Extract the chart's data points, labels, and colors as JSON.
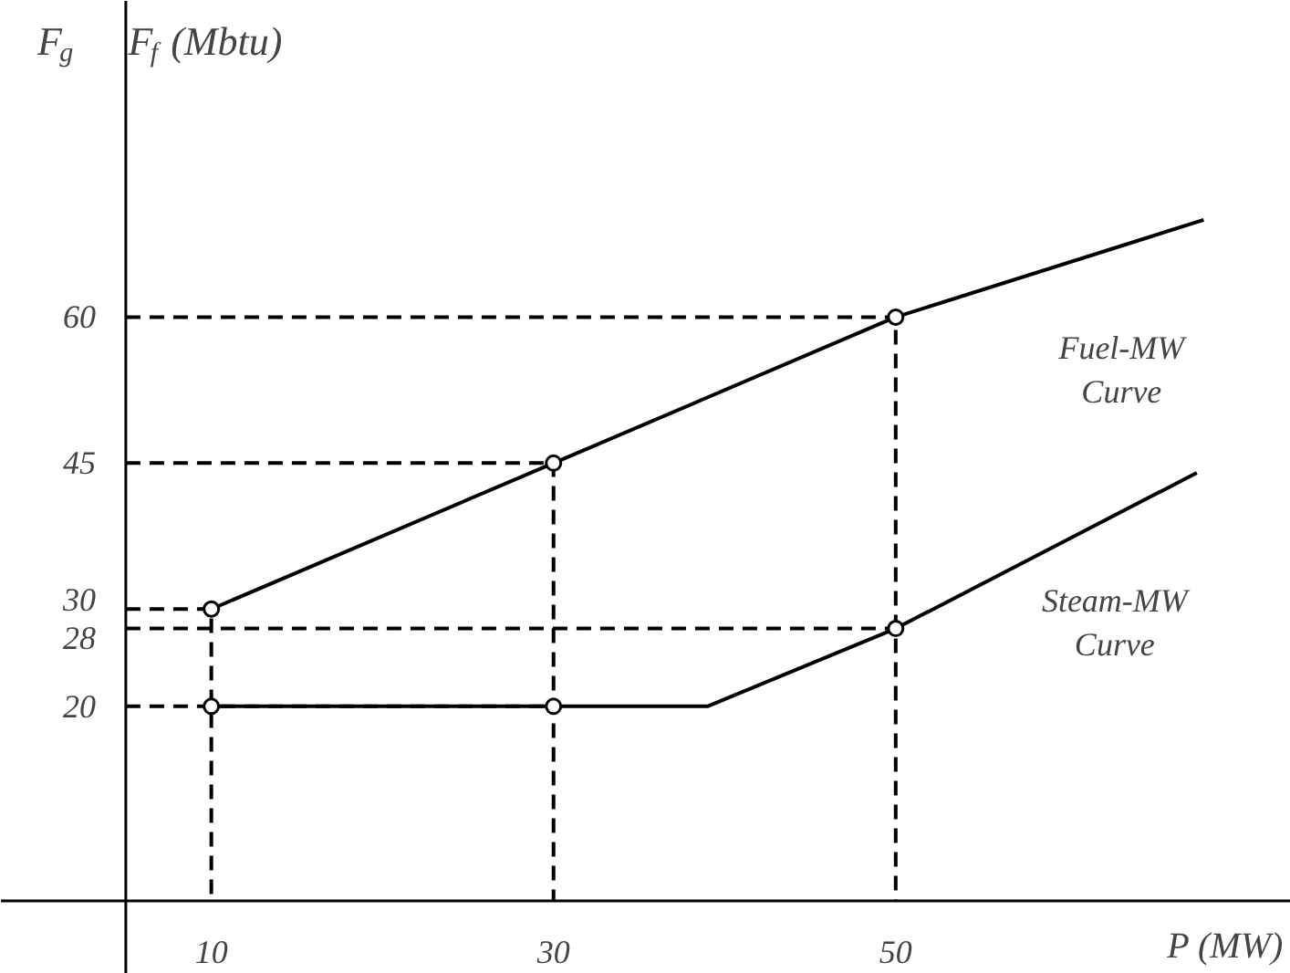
{
  "chart_data": {
    "type": "line",
    "xlabel": "P (MW)",
    "ylabel": "F$_{g}$   F$_{f}$(Mbtu)",
    "xlim": [
      -2.3,
      73.1
    ],
    "ylim": [
      -7.5,
      92.5
    ],
    "xticks": [
      10,
      30,
      50
    ],
    "yticks": [
      20,
      28,
      30,
      45,
      60
    ],
    "grid": false,
    "line_style": "solid",
    "marker": "none",
    "ref_lines": [
      {
        "axis": "x",
        "value": 5,
        "label": null,
        "color": "#000000"
      },
      {
        "axis": "y",
        "value": 0,
        "label": null,
        "color": "#000000"
      }
    ],
    "series": [
      {
        "name": "Fuel-MW Curve",
        "color": "#000000",
        "x": [
          10,
          30,
          50,
          68
        ],
        "values": [
          30,
          45,
          60,
          70
        ]
      },
      {
        "name": "Steam-MW Curve",
        "color": "#000000",
        "x": [
          10,
          30,
          39,
          50,
          67.6
        ],
        "values": [
          20,
          20,
          20,
          28,
          44
        ]
      },
      {
        "type": "scatter",
        "marker": "circle",
        "color": "#000000",
        "x": [
          10,
          30,
          50,
          10,
          30,
          50
        ],
        "values": [
          30,
          45,
          60,
          20,
          20,
          28
        ]
      },
      {
        "line_style": "dashed",
        "color": "#000000",
        "x": [
          5,
          10,
          10
        ],
        "values": [
          30,
          30,
          0
        ]
      },
      {
        "line_style": "dashed",
        "color": "#000000",
        "x": [
          5,
          30,
          30
        ],
        "values": [
          45,
          45,
          0
        ]
      },
      {
        "line_style": "dashed",
        "color": "#000000",
        "x": [
          5,
          50,
          50
        ],
        "values": [
          60,
          60,
          0
        ]
      },
      {
        "line_style": "dashed",
        "color": "#000000",
        "x": [
          5,
          50
        ],
        "values": [
          28,
          28
        ]
      },
      {
        "line_style": "dashed",
        "color": "#000000",
        "x": [
          5,
          30
        ],
        "values": [
          20,
          20
        ]
      }
    ]
  }
}
